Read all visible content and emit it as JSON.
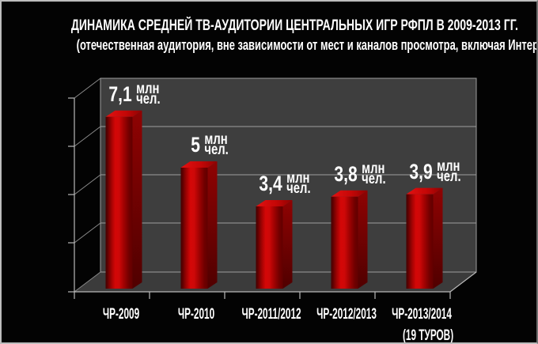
{
  "title": "ДИНАМИКА СРЕДНЕЙ ТВ-АУДИТОРИИ ЦЕНТРАЛЬНЫХ ИГР РФПЛ В 2009-2013 ГГ.",
  "subtitle": "(отечественная аудитория, вне зависимости от мест и каналов просмотра, включая Интернет)",
  "chart_data": {
    "type": "bar",
    "style": "3d-column",
    "categories": [
      "ЧР-2009",
      "ЧР-2010",
      "ЧР-2011/2012",
      "ЧР-2012/2013",
      "ЧР-2013/2014\n(19 ТУРОВ)"
    ],
    "values": [
      7.1,
      5,
      3.4,
      3.8,
      3.9
    ],
    "value_labels": [
      "7,1",
      "5",
      "3,4",
      "3,8",
      "3,9"
    ],
    "unit_label_lines": [
      "млн",
      "чел."
    ],
    "unit": "млн чел.",
    "ylabel": "",
    "xlabel": "",
    "ylim": [
      0,
      8
    ],
    "y_gridline_interval_millions": 2,
    "grid": true,
    "legend": false,
    "colors": {
      "background": "#030303",
      "frame_border": "#bdbdbd",
      "wall": "#3e3e3e",
      "floor": "#3b3b3b",
      "gridline": "#9d9d9d",
      "axis": "#b8b8b8",
      "bar_main": "#c00000",
      "bar_bright": "#d40707",
      "bar_dark": "#5e0101",
      "text": "#ffffff"
    }
  }
}
